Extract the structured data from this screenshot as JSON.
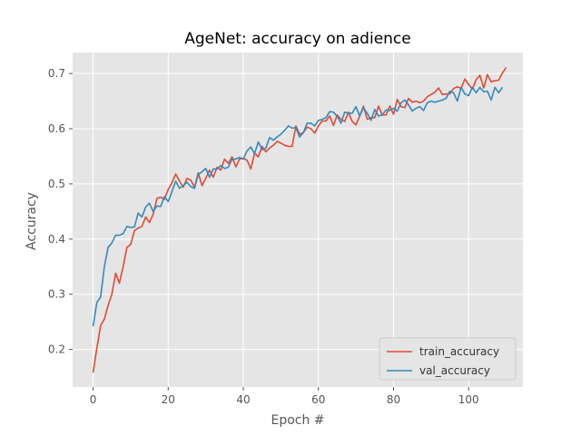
{
  "chart_data": {
    "type": "line",
    "title": "AgeNet: accuracy on adience",
    "xlabel": "Epoch #",
    "ylabel": "Accuracy",
    "xlim": [
      -5.45,
      114.45
    ],
    "ylim": [
      0.132,
      0.738
    ],
    "xticks": [
      0,
      20,
      40,
      60,
      80,
      100
    ],
    "yticks": [
      0.2,
      0.3,
      0.4,
      0.5,
      0.6,
      0.7
    ],
    "xtick_labels": [
      "0",
      "20",
      "40",
      "60",
      "80",
      "100"
    ],
    "ytick_labels": [
      "0.2",
      "0.3",
      "0.4",
      "0.5",
      "0.6",
      "0.7"
    ],
    "grid": true,
    "legend_position": "lower-right",
    "colors": {
      "plot_background": "#e5e5e5",
      "grid": "#ffffff",
      "train_accuracy": "#e24a33",
      "val_accuracy": "#348abd"
    },
    "series": [
      {
        "name": "train_accuracy",
        "values": [
          0.158,
          0.202,
          0.243,
          0.255,
          0.28,
          0.3,
          0.338,
          0.32,
          0.35,
          0.385,
          0.39,
          0.415,
          0.42,
          0.423,
          0.44,
          0.43,
          0.445,
          0.474,
          0.476,
          0.472,
          0.49,
          0.502,
          0.518,
          0.505,
          0.494,
          0.51,
          0.507,
          0.494,
          0.52,
          0.497,
          0.51,
          0.525,
          0.512,
          0.53,
          0.525,
          0.545,
          0.537,
          0.549,
          0.531,
          0.545,
          0.546,
          0.543,
          0.527,
          0.556,
          0.549,
          0.568,
          0.558,
          0.565,
          0.57,
          0.577,
          0.574,
          0.57,
          0.568,
          0.568,
          0.605,
          0.59,
          0.593,
          0.603,
          0.6,
          0.592,
          0.605,
          0.614,
          0.614,
          0.623,
          0.606,
          0.625,
          0.617,
          0.613,
          0.63,
          0.613,
          0.607,
          0.623,
          0.641,
          0.617,
          0.62,
          0.62,
          0.641,
          0.625,
          0.625,
          0.641,
          0.626,
          0.653,
          0.64,
          0.638,
          0.655,
          0.648,
          0.65,
          0.647,
          0.65,
          0.658,
          0.662,
          0.666,
          0.674,
          0.662,
          0.663,
          0.663,
          0.673,
          0.676,
          0.673,
          0.69,
          0.68,
          0.672,
          0.689,
          0.697,
          0.674,
          0.698,
          0.685,
          0.687,
          0.688,
          0.701,
          0.711
        ],
        "x_start": 0
      },
      {
        "name": "val_accuracy",
        "values": [
          0.242,
          0.285,
          0.295,
          0.35,
          0.385,
          0.393,
          0.407,
          0.407,
          0.41,
          0.423,
          0.421,
          0.422,
          0.447,
          0.44,
          0.458,
          0.465,
          0.45,
          0.46,
          0.459,
          0.477,
          0.468,
          0.486,
          0.505,
          0.492,
          0.497,
          0.503,
          0.495,
          0.492,
          0.517,
          0.522,
          0.528,
          0.512,
          0.527,
          0.527,
          0.533,
          0.528,
          0.53,
          0.545,
          0.545,
          0.548,
          0.545,
          0.56,
          0.567,
          0.555,
          0.576,
          0.562,
          0.565,
          0.584,
          0.579,
          0.585,
          0.59,
          0.597,
          0.605,
          0.601,
          0.602,
          0.585,
          0.593,
          0.61,
          0.61,
          0.605,
          0.615,
          0.617,
          0.62,
          0.631,
          0.63,
          0.622,
          0.61,
          0.63,
          0.628,
          0.628,
          0.64,
          0.623,
          0.638,
          0.628,
          0.615,
          0.635,
          0.623,
          0.625,
          0.634,
          0.633,
          0.637,
          0.632,
          0.647,
          0.652,
          0.643,
          0.632,
          0.637,
          0.64,
          0.633,
          0.647,
          0.65,
          0.648,
          0.65,
          0.652,
          0.655,
          0.668,
          0.665,
          0.65,
          0.675,
          0.663,
          0.66,
          0.675,
          0.665,
          0.675,
          0.667,
          0.668,
          0.652,
          0.675,
          0.665,
          0.675
        ],
        "x_start": 0
      }
    ]
  }
}
